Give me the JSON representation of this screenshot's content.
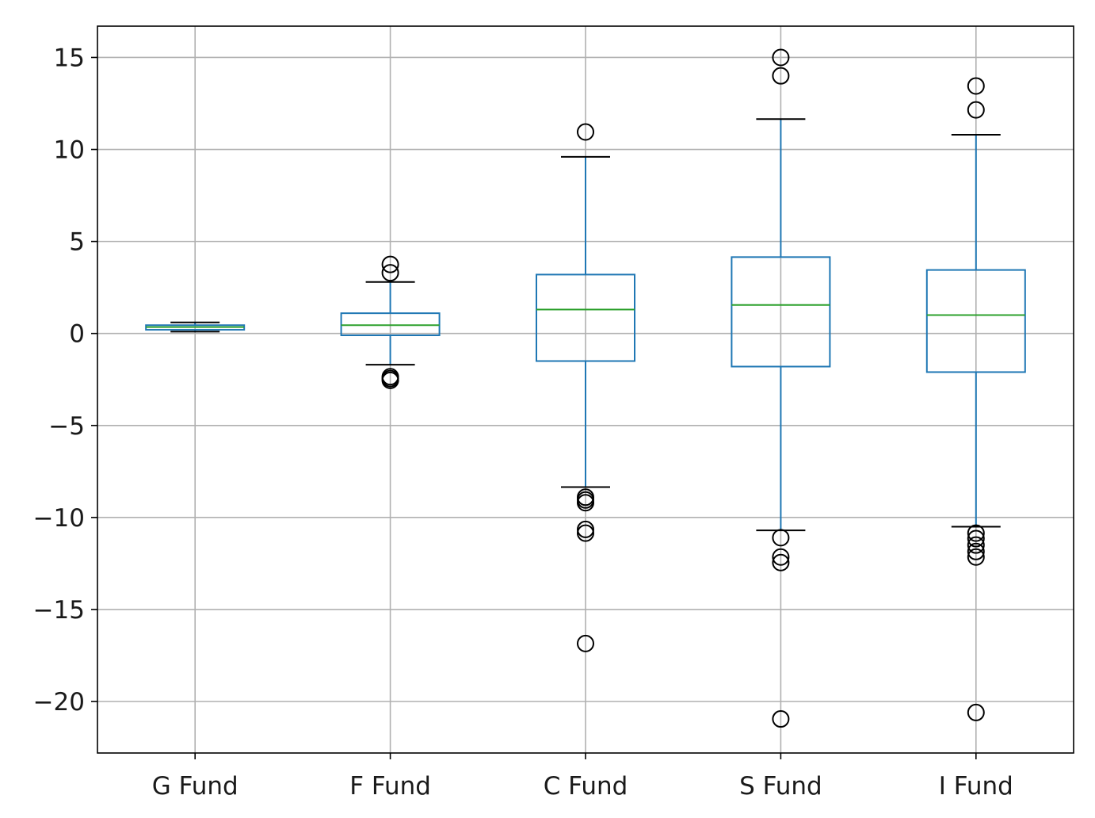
{
  "chart_data": {
    "type": "boxplot",
    "title": "",
    "xlabel": "",
    "ylabel": "",
    "categories": [
      "G Fund",
      "F Fund",
      "C Fund",
      "S Fund",
      "I Fund"
    ],
    "ylim": [
      -22.8,
      16.7
    ],
    "yticks": [
      15,
      10,
      5,
      0,
      -5,
      -10,
      -15,
      -20
    ],
    "ytick_labels": [
      "15",
      "10",
      "5",
      "0",
      "−5",
      "−10",
      "−15",
      "−20"
    ],
    "grid": true,
    "colors": {
      "box": "#1f77b4",
      "median": "#2ca02c",
      "caps": "#000000",
      "fliers": "#000000",
      "grid": "#b0b0b0"
    },
    "boxes": [
      {
        "name": "G Fund",
        "whislo": 0.1,
        "q1": 0.2,
        "med": 0.35,
        "q3": 0.45,
        "whishi": 0.6,
        "fliers": []
      },
      {
        "name": "F Fund",
        "whislo": -1.7,
        "q1": -0.1,
        "med": 0.45,
        "q3": 1.1,
        "whishi": 2.8,
        "fliers": [
          3.75,
          3.3,
          -2.35,
          -2.45,
          -2.55
        ]
      },
      {
        "name": "C Fund",
        "whislo": -8.35,
        "q1": -1.5,
        "med": 1.3,
        "q3": 3.2,
        "whishi": 9.6,
        "fliers": [
          10.95,
          -8.9,
          -9.05,
          -9.2,
          -10.65,
          -10.85,
          -16.85
        ]
      },
      {
        "name": "S Fund",
        "whislo": -10.7,
        "q1": -1.8,
        "med": 1.55,
        "q3": 4.15,
        "whishi": 11.65,
        "fliers": [
          15.0,
          14.0,
          -11.1,
          -12.15,
          -12.45,
          -20.95
        ]
      },
      {
        "name": "I Fund",
        "whislo": -10.5,
        "q1": -2.1,
        "med": 1.0,
        "q3": 3.45,
        "whishi": 10.8,
        "fliers": [
          13.45,
          12.15,
          -10.85,
          -11.15,
          -11.5,
          -11.85,
          -12.15,
          -20.6
        ]
      }
    ]
  }
}
